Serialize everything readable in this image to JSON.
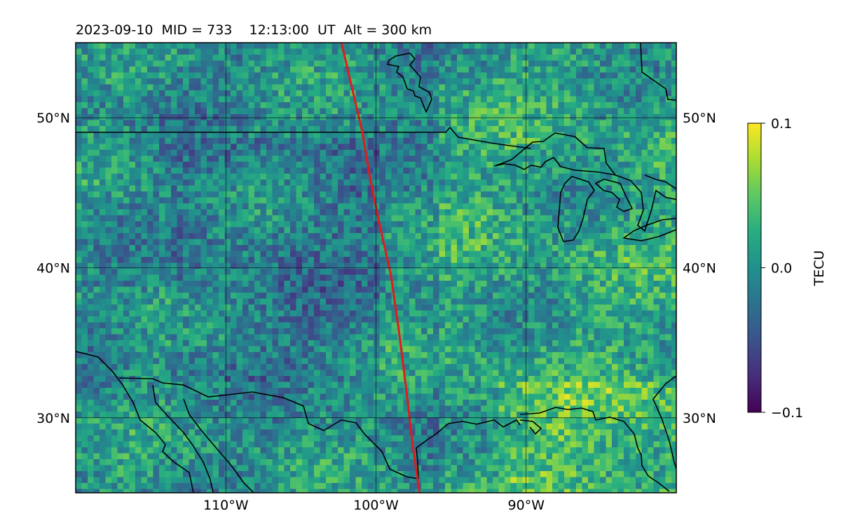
{
  "title": "2023-09-10  MID = 733    12:13:00  UT  Alt = 300 km",
  "map": {
    "lon_range": [
      -120,
      -80
    ],
    "lat_range": [
      25,
      55
    ],
    "x_ticks": [
      {
        "lon": -110,
        "label": "110°W"
      },
      {
        "lon": -100,
        "label": "100°W"
      },
      {
        "lon": -90,
        "label": "90°W"
      }
    ],
    "y_ticks": [
      {
        "lat": 50,
        "label": "50°N"
      },
      {
        "lat": 40,
        "label": "40°N"
      },
      {
        "lat": 30,
        "label": "30°N"
      }
    ],
    "gridlines": true,
    "coastline_color": "#000000",
    "track_color": "#e31a1c"
  },
  "terminator_track": [
    [
      -102.3,
      55
    ],
    [
      -101.6,
      52
    ],
    [
      -100.9,
      49
    ],
    [
      -100.4,
      46
    ],
    [
      -99.7,
      42.6
    ],
    [
      -99.0,
      39.5
    ],
    [
      -98.5,
      36
    ],
    [
      -98.0,
      32
    ],
    [
      -97.6,
      28.5
    ],
    [
      -97.1,
      25
    ]
  ],
  "colorbar": {
    "label": "TECU",
    "min": -0.1,
    "max": 0.1,
    "ticks": [
      {
        "value": 0.1,
        "label": "0.1"
      },
      {
        "value": 0.0,
        "label": "0.0"
      },
      {
        "value": -0.1,
        "label": "−0.1"
      }
    ],
    "colormap": "viridis"
  }
}
